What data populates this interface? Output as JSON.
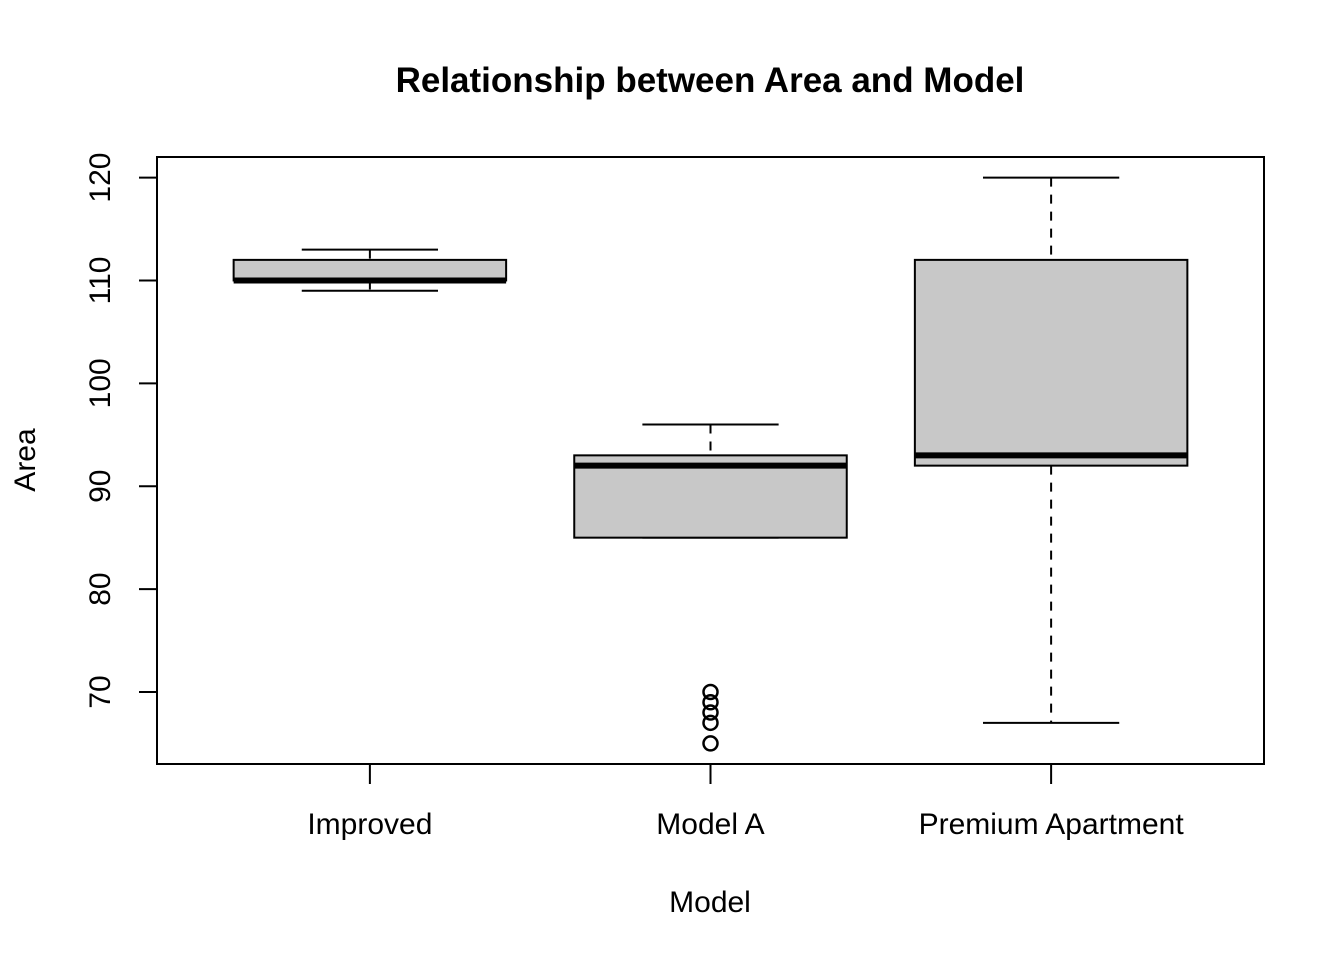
{
  "chart_data": {
    "type": "boxplot",
    "title": "Relationship between Area and Model",
    "xlabel": "Model",
    "ylabel": "Area",
    "ylim": [
      63,
      122
    ],
    "yticks": [
      70,
      80,
      90,
      100,
      110,
      120
    ],
    "grid": false,
    "box_color": "#c8c8c8",
    "categories": [
      "Improved",
      "Model A",
      "Premium Apartment"
    ],
    "boxes": [
      {
        "category": "Improved",
        "whisker_low": 109,
        "q1": 110,
        "median": 110,
        "q3": 112,
        "whisker_high": 113,
        "outliers": []
      },
      {
        "category": "Model A",
        "whisker_low": 85,
        "q1": 85,
        "median": 92,
        "q3": 93,
        "whisker_high": 96,
        "outliers": [
          65,
          67,
          68,
          69,
          70
        ]
      },
      {
        "category": "Premium Apartment",
        "whisker_low": 67,
        "q1": 92,
        "median": 93,
        "q3": 112,
        "whisker_high": 120,
        "outliers": []
      }
    ]
  }
}
